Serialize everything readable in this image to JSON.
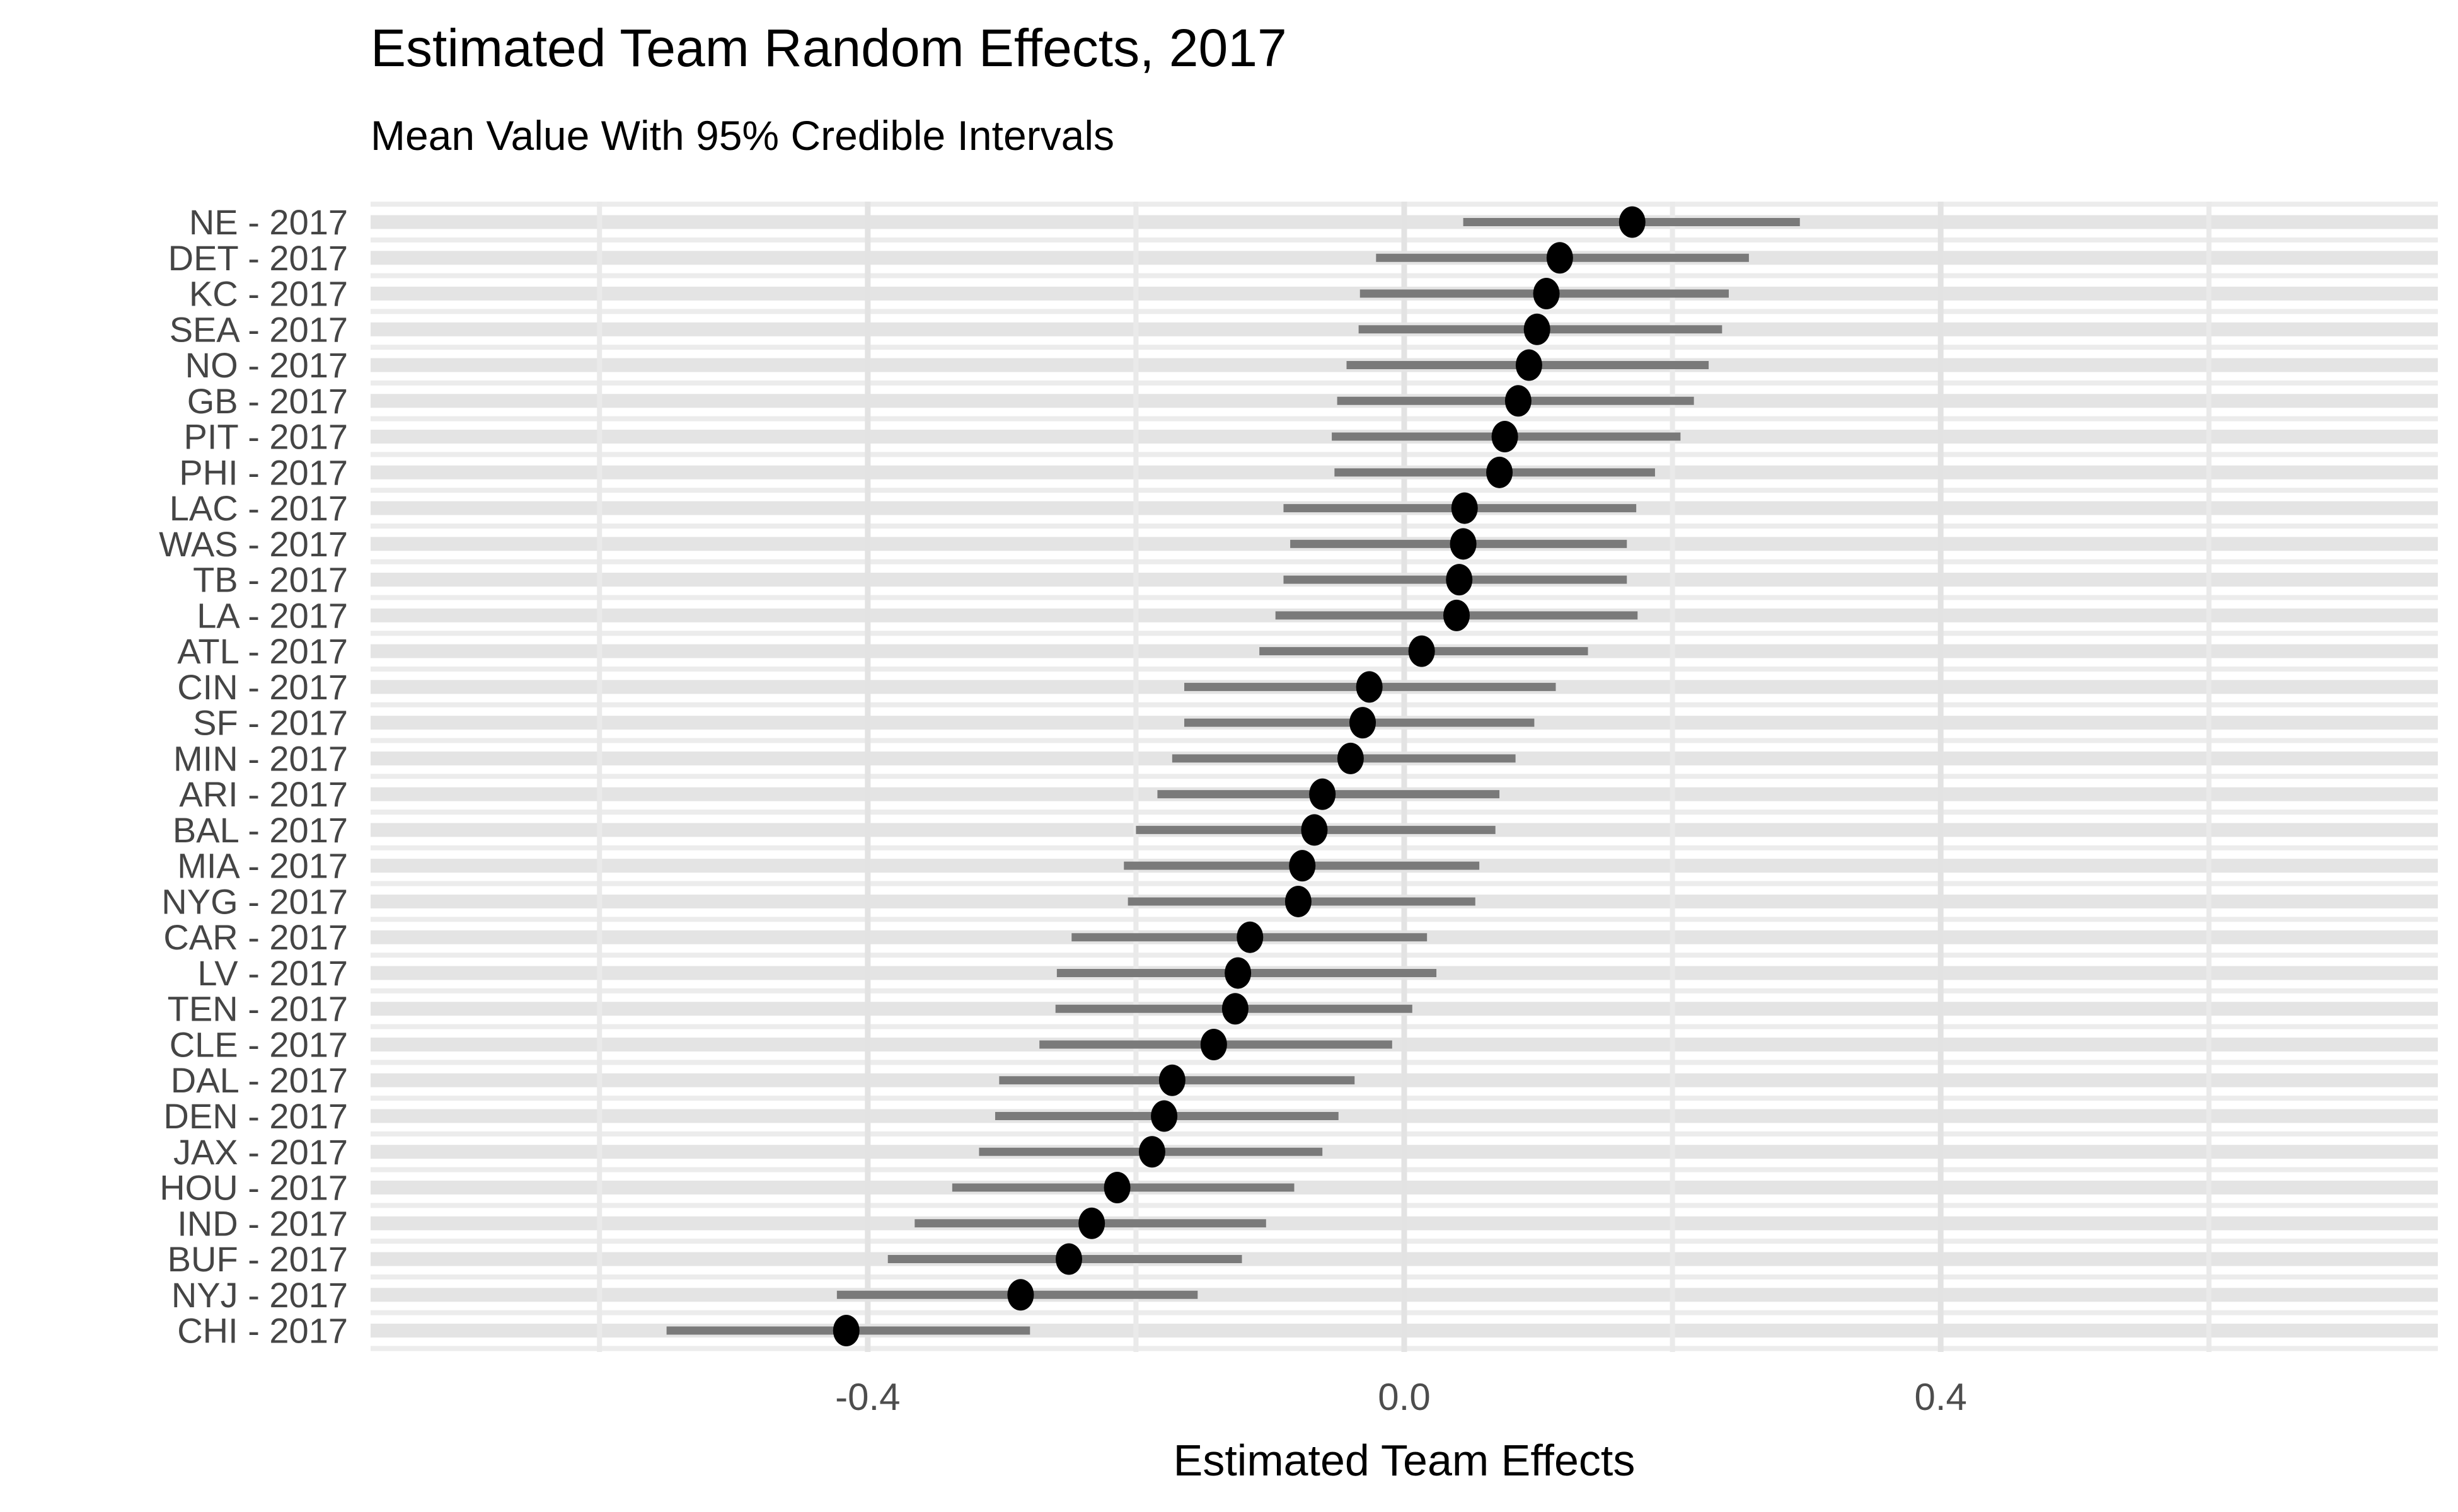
{
  "header": {
    "title": "Estimated Team Random Effects, 2017",
    "subtitle": "Mean Value With 95% Credible Intervals"
  },
  "chart_data": {
    "type": "pointrange",
    "orientation": "horizontal",
    "title": "Estimated Team Random Effects, 2017",
    "subtitle": "Mean Value With 95% Credible Intervals",
    "xlabel": "Estimated Team Effects",
    "ylabel": "",
    "xlim": [
      -0.77,
      0.77
    ],
    "grid": "on",
    "legend": "none",
    "x_ticks": [
      {
        "value": -0.4,
        "label": "-0.4"
      },
      {
        "value": 0.0,
        "label": "0.0"
      },
      {
        "value": 0.4,
        "label": "0.4"
      }
    ],
    "x_gridlines_major": [
      -0.4,
      0.0,
      0.4
    ],
    "x_gridlines_minor": [
      -0.6,
      -0.2,
      0.2,
      0.6
    ],
    "colors": {
      "point": "#000000",
      "interval": "#7A7A7A",
      "row_band": "#E4E4E4",
      "minor_grid": "#ECECEC",
      "major_vgrid": "#E3E3E3",
      "minor_vgrid": "#EAEAEA",
      "y_label": "#454545",
      "x_tick_label": "#4D4D4D",
      "title_text": "#000000"
    },
    "rows": [
      {
        "label": "NE - 2017",
        "team": "NE",
        "year": "2017",
        "mean": 0.17,
        "lower": 0.044,
        "upper": 0.295
      },
      {
        "label": "DET - 2017",
        "team": "DET",
        "year": "2017",
        "mean": 0.116,
        "lower": -0.021,
        "upper": 0.257
      },
      {
        "label": "KC - 2017",
        "team": "KC",
        "year": "2017",
        "mean": 0.106,
        "lower": -0.033,
        "upper": 0.242
      },
      {
        "label": "SEA - 2017",
        "team": "SEA",
        "year": "2017",
        "mean": 0.099,
        "lower": -0.034,
        "upper": 0.237
      },
      {
        "label": "NO - 2017",
        "team": "NO",
        "year": "2017",
        "mean": 0.093,
        "lower": -0.043,
        "upper": 0.227
      },
      {
        "label": "GB - 2017",
        "team": "GB",
        "year": "2017",
        "mean": 0.085,
        "lower": -0.05,
        "upper": 0.216
      },
      {
        "label": "PIT - 2017",
        "team": "PIT",
        "year": "2017",
        "mean": 0.075,
        "lower": -0.054,
        "upper": 0.206
      },
      {
        "label": "PHI - 2017",
        "team": "PHI",
        "year": "2017",
        "mean": 0.071,
        "lower": -0.052,
        "upper": 0.187
      },
      {
        "label": "LAC - 2017",
        "team": "LAC",
        "year": "2017",
        "mean": 0.045,
        "lower": -0.09,
        "upper": 0.173
      },
      {
        "label": "WAS - 2017",
        "team": "WAS",
        "year": "2017",
        "mean": 0.044,
        "lower": -0.085,
        "upper": 0.166
      },
      {
        "label": "TB - 2017",
        "team": "TB",
        "year": "2017",
        "mean": 0.041,
        "lower": -0.09,
        "upper": 0.166
      },
      {
        "label": "LA - 2017",
        "team": "LA",
        "year": "2017",
        "mean": 0.039,
        "lower": -0.096,
        "upper": 0.174
      },
      {
        "label": "ATL - 2017",
        "team": "ATL",
        "year": "2017",
        "mean": 0.013,
        "lower": -0.108,
        "upper": 0.137
      },
      {
        "label": "CIN - 2017",
        "team": "CIN",
        "year": "2017",
        "mean": -0.026,
        "lower": -0.164,
        "upper": 0.113
      },
      {
        "label": "SF - 2017",
        "team": "SF",
        "year": "2017",
        "mean": -0.031,
        "lower": -0.164,
        "upper": 0.097
      },
      {
        "label": "MIN - 2017",
        "team": "MIN",
        "year": "2017",
        "mean": -0.04,
        "lower": -0.173,
        "upper": 0.083
      },
      {
        "label": "ARI - 2017",
        "team": "ARI",
        "year": "2017",
        "mean": -0.061,
        "lower": -0.184,
        "upper": 0.071
      },
      {
        "label": "BAL - 2017",
        "team": "BAL",
        "year": "2017",
        "mean": -0.067,
        "lower": -0.2,
        "upper": 0.068
      },
      {
        "label": "MIA - 2017",
        "team": "MIA",
        "year": "2017",
        "mean": -0.076,
        "lower": -0.209,
        "upper": 0.056
      },
      {
        "label": "NYG - 2017",
        "team": "NYG",
        "year": "2017",
        "mean": -0.079,
        "lower": -0.206,
        "upper": 0.053
      },
      {
        "label": "CAR - 2017",
        "team": "CAR",
        "year": "2017",
        "mean": -0.115,
        "lower": -0.248,
        "upper": 0.017
      },
      {
        "label": "LV - 2017",
        "team": "LV",
        "year": "2017",
        "mean": -0.124,
        "lower": -0.259,
        "upper": 0.024
      },
      {
        "label": "TEN - 2017",
        "team": "TEN",
        "year": "2017",
        "mean": -0.126,
        "lower": -0.26,
        "upper": 0.006
      },
      {
        "label": "CLE - 2017",
        "team": "CLE",
        "year": "2017",
        "mean": -0.142,
        "lower": -0.272,
        "upper": -0.009
      },
      {
        "label": "DAL - 2017",
        "team": "DAL",
        "year": "2017",
        "mean": -0.173,
        "lower": -0.302,
        "upper": -0.037
      },
      {
        "label": "DEN - 2017",
        "team": "DEN",
        "year": "2017",
        "mean": -0.179,
        "lower": -0.305,
        "upper": -0.049
      },
      {
        "label": "JAX - 2017",
        "team": "JAX",
        "year": "2017",
        "mean": -0.188,
        "lower": -0.317,
        "upper": -0.061
      },
      {
        "label": "HOU - 2017",
        "team": "HOU",
        "year": "2017",
        "mean": -0.214,
        "lower": -0.337,
        "upper": -0.082
      },
      {
        "label": "IND - 2017",
        "team": "IND",
        "year": "2017",
        "mean": -0.233,
        "lower": -0.365,
        "upper": -0.103
      },
      {
        "label": "BUF - 2017",
        "team": "BUF",
        "year": "2017",
        "mean": -0.25,
        "lower": -0.385,
        "upper": -0.121
      },
      {
        "label": "NYJ - 2017",
        "team": "NYJ",
        "year": "2017",
        "mean": -0.286,
        "lower": -0.423,
        "upper": -0.154
      },
      {
        "label": "CHI - 2017",
        "team": "CHI",
        "year": "2017",
        "mean": -0.416,
        "lower": -0.55,
        "upper": -0.279
      }
    ]
  }
}
